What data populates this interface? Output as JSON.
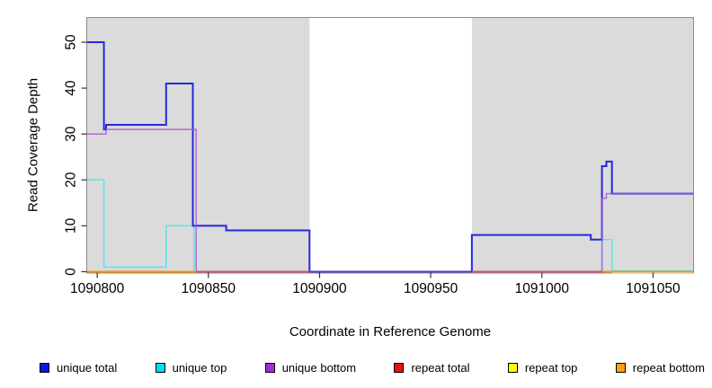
{
  "figure": {
    "x_axis_title": "Coordinate in Reference Genome",
    "y_axis_title": "Read Coverage Depth"
  },
  "chart_data": {
    "type": "line",
    "subtype": "step",
    "title": "",
    "xlabel": "Coordinate in Reference Genome",
    "ylabel": "Read Coverage Depth",
    "xlim": [
      1090795.5,
      1091068
    ],
    "ylim": [
      0,
      55.3
    ],
    "x_ticks": [
      1090800,
      1090850,
      1090900,
      1090950,
      1091000,
      1091050
    ],
    "y_ticks": [
      0,
      10,
      20,
      30,
      40,
      50
    ],
    "grid": false,
    "plot_background": "#ffffff",
    "shaded_region_color": "#dbdbdb",
    "shaded_regions": [
      {
        "x1": 1090795.5,
        "x2": 1090895.5
      },
      {
        "x1": 1090968.5,
        "x2": 1091068
      }
    ],
    "series": [
      {
        "name": "repeat total",
        "color": "#e01030",
        "width": 1.2,
        "opacity": 1,
        "steps": [
          [
            1090795.5,
            0
          ]
        ]
      },
      {
        "name": "repeat top",
        "color": "#ffee00",
        "width": 1.2,
        "opacity": 1,
        "steps": [
          [
            1090795.5,
            0
          ]
        ]
      },
      {
        "name": "repeat bottom",
        "color": "#ff9100",
        "width": 1.6,
        "opacity": 1,
        "steps": [
          [
            1090795.5,
            0
          ]
        ]
      },
      {
        "name": "unique top",
        "color": "#55e6f2",
        "width": 1.5,
        "opacity": 1,
        "steps": [
          [
            1090795.5,
            20
          ],
          [
            1090803,
            1
          ],
          [
            1090831,
            10
          ],
          [
            1090843.5,
            0
          ],
          [
            1091027,
            7
          ],
          [
            1091031.5,
            0
          ]
        ]
      },
      {
        "name": "unique total",
        "color": "#2828dc",
        "width": 2.0,
        "opacity": 1,
        "steps": [
          [
            1090795.5,
            50
          ],
          [
            1090803,
            31
          ],
          [
            1090804,
            32
          ],
          [
            1090831,
            41
          ],
          [
            1090843,
            10
          ],
          [
            1090858,
            9
          ],
          [
            1090895.5,
            0
          ],
          [
            1090968.5,
            8
          ],
          [
            1091022,
            7
          ],
          [
            1091027,
            23
          ],
          [
            1091029,
            24
          ],
          [
            1091031.5,
            17
          ]
        ]
      },
      {
        "name": "unique bottom",
        "color": "#a84fd6",
        "width": 1.5,
        "opacity": 0.8,
        "steps": [
          [
            1090795.5,
            30
          ],
          [
            1090804,
            31
          ],
          [
            1090844.5,
            0
          ],
          [
            1091027,
            16
          ],
          [
            1091029,
            17
          ]
        ]
      }
    ],
    "baseline_segments": [
      {
        "x1": 1090795.5,
        "x2": 1090844.5,
        "color": "#ff9100",
        "width": 2,
        "dy": 0
      },
      {
        "x1": 1090844.5,
        "x2": 1090895.5,
        "color": "#d14f72",
        "width": 2,
        "dy": 0
      },
      {
        "x1": 1090895.5,
        "x2": 1090968.5,
        "color": "#453bdb",
        "width": 2,
        "dy": 0
      },
      {
        "x1": 1090968.5,
        "x2": 1091027,
        "color": "#d14f72",
        "width": 2,
        "dy": 0
      },
      {
        "x1": 1091027,
        "x2": 1091031.5,
        "color": "#ff9100",
        "width": 2,
        "dy": 0
      },
      {
        "x1": 1091031.5,
        "x2": 1091068,
        "color": "#f2bb84",
        "width": 1.5,
        "dy": 1
      },
      {
        "x1": 1091031.5,
        "x2": 1091068,
        "color": "#74c476",
        "width": 1.8,
        "dy": -0.5
      }
    ],
    "legend": {
      "position": "bottom",
      "entries": [
        {
          "label": "unique total",
          "color": "#1010e8"
        },
        {
          "label": "unique top",
          "color": "#00e0ee"
        },
        {
          "label": "unique bottom",
          "color": "#9a30d8"
        },
        {
          "label": "repeat total",
          "color": "#e81010"
        },
        {
          "label": "repeat top",
          "color": "#ffff00"
        },
        {
          "label": "repeat bottom",
          "color": "#ffa010"
        }
      ]
    }
  }
}
